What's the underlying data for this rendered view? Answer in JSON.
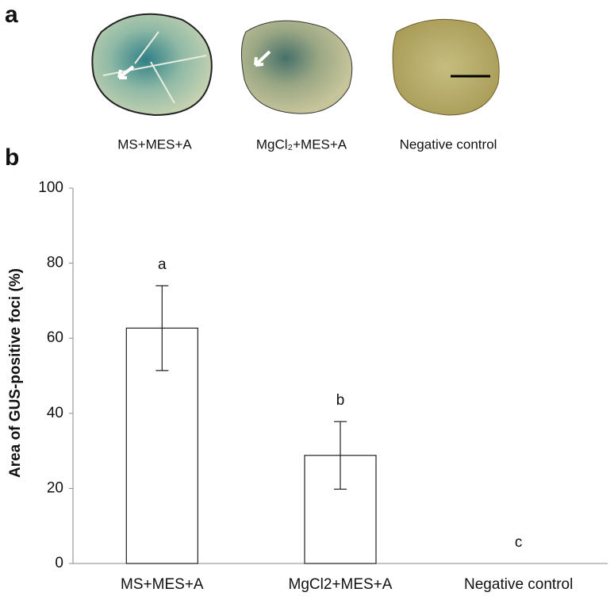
{
  "panel_a": {
    "label": "a",
    "captions": [
      "MS+MES+A",
      "MgCl₂+MES+A",
      "Negative control"
    ]
  },
  "chart_data": {
    "type": "bar",
    "panel_label": "b",
    "y_label": "Area of GUS-positive foci  (%)",
    "categories": [
      "MS+MES+A",
      "MgCl2+MES+A",
      "Negative control"
    ],
    "values": [
      62.7,
      28.8,
      0
    ],
    "errors": [
      11.3,
      9.0,
      null
    ],
    "annotations": [
      "a",
      "b",
      "c"
    ],
    "color": "#ffffff",
    "ylim": [
      0,
      100
    ],
    "yticks": [
      0,
      20,
      40,
      60,
      80,
      100
    ],
    "grid": false
  }
}
